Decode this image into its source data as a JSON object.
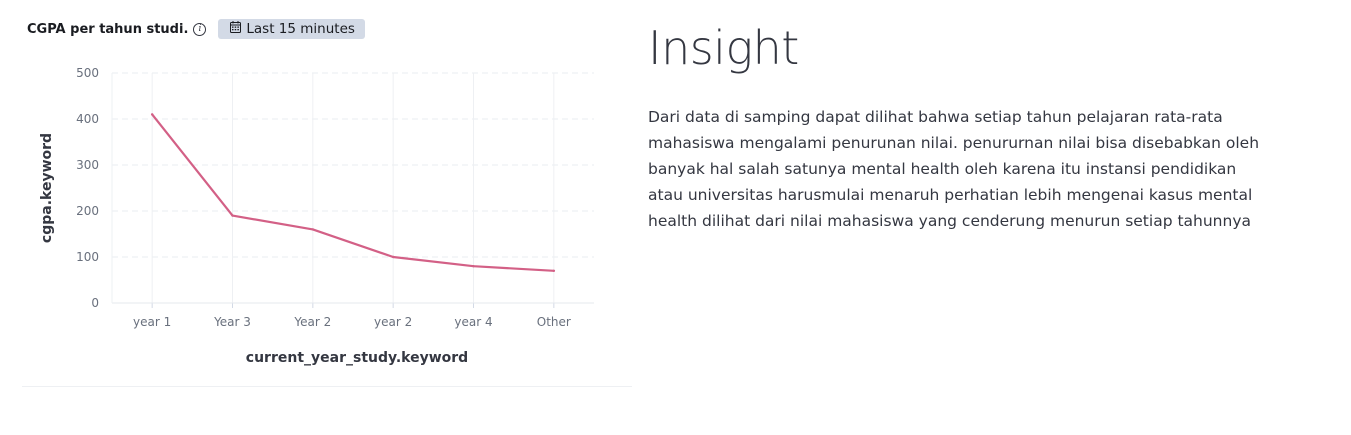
{
  "panel": {
    "title": "CGPA per tahun studi.",
    "info_icon": "info-icon",
    "time_badge": {
      "icon": "calendar-icon",
      "label": "Last 15 minutes"
    }
  },
  "chart_data": {
    "type": "line",
    "categories": [
      "year 1",
      "Year 3",
      "Year 2",
      "year 2",
      "year 4",
      "Other"
    ],
    "series": [
      {
        "values": [
          410,
          190,
          160,
          100,
          80,
          70
        ],
        "color": "#d36086"
      }
    ],
    "xlabel": "current_year_study.keyword",
    "ylabel": "cgpa.keyword",
    "ylim": [
      0,
      500
    ],
    "yticks": [
      0,
      100,
      200,
      300,
      400,
      500
    ],
    "grid": true
  },
  "insight": {
    "title": "Insight",
    "body": "Dari data di samping dapat dilihat bahwa setiap tahun pelajaran rata-rata mahasiswa mengalami penurunan nilai. penururnan nilai bisa disebabkan oleh banyak hal salah satunya mental health oleh karena itu instansi pendidikan atau universitas harusmulai menaruh perhatian lebih mengenai kasus mental health dilihat dari nilai mahasiswa yang cenderung menurun setiap tahunnya"
  }
}
